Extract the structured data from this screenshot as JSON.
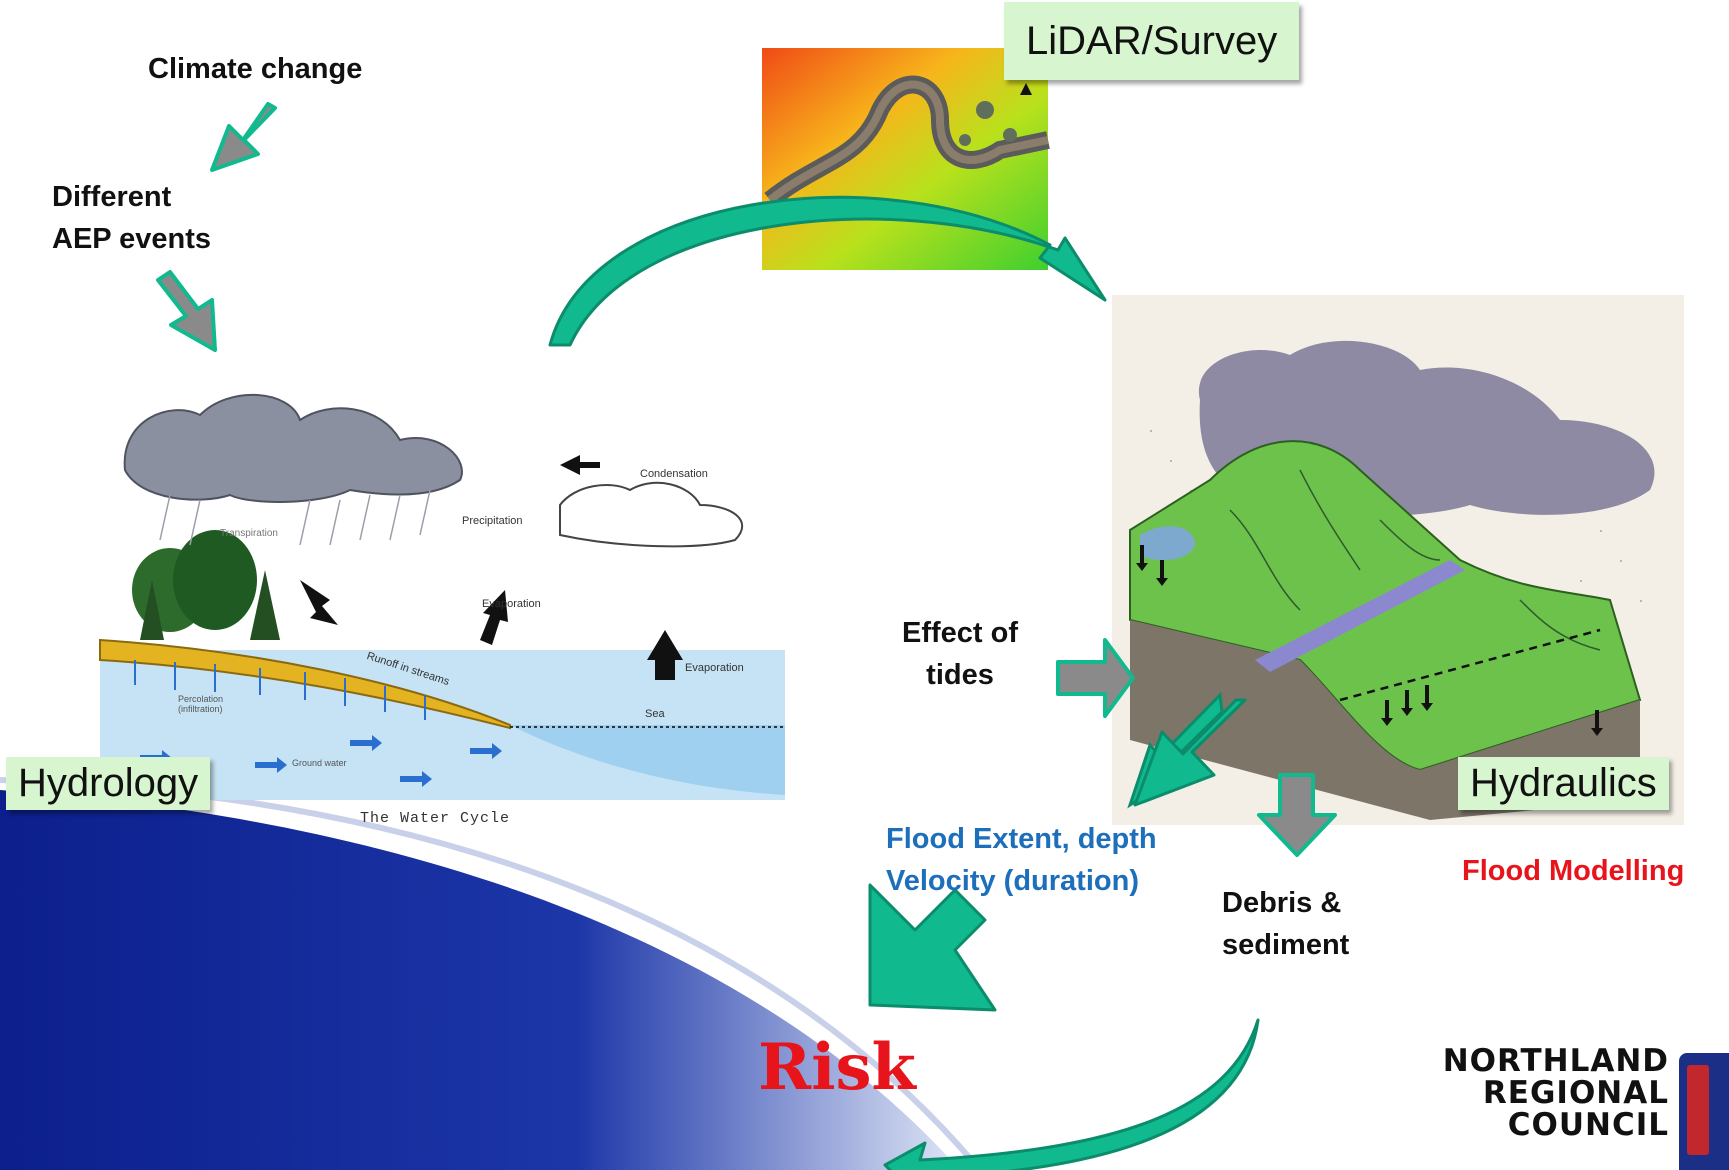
{
  "labels": {
    "climate_change": "Climate change",
    "different_aep_line1": "Different",
    "different_aep_line2": "AEP events",
    "lidar_survey": "LiDAR/Survey",
    "hydrology": "Hydrology",
    "hydraulics": "Hydraulics",
    "flood_modelling": "Flood Modelling",
    "effect_of_tides_line1": "Effect of",
    "effect_of_tides_line2": "tides",
    "flood_extent_line1": "Flood Extent, depth",
    "flood_extent_line2": "Velocity (duration)",
    "debris_line1": "Debris &",
    "debris_line2": "sediment",
    "risk": "Risk"
  },
  "water_cycle": {
    "caption": "The Water Cycle",
    "condensation": "Condensation",
    "precipitation": "Precipitation",
    "transpiration": "Transpiration",
    "evaporation_1": "Evaporation",
    "evaporation_2": "Evaporation",
    "runoff": "Runoff in streams",
    "sea": "Sea",
    "percolation": "Percolation (infiltration)",
    "ground_water": "Ground water"
  },
  "logo": {
    "line1": "NORTHLAND",
    "line2": "REGIONAL",
    "line3": "COUNCIL"
  },
  "colors": {
    "teal_arrow": "#11b98f",
    "grey_arrow": "#8a8a8a",
    "risk_red": "#e8141b",
    "flood_blue": "#1d6fbb",
    "flood_modelling_red": "#e8141b",
    "label_box": "#d7f5cf",
    "band_blue": "#1b2d96"
  }
}
